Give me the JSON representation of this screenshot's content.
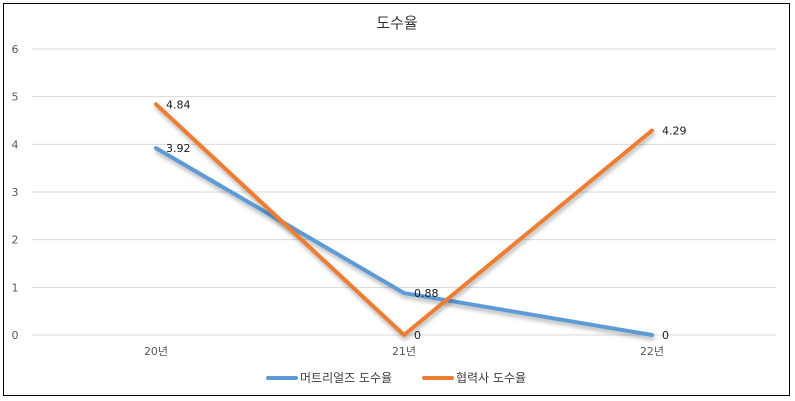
{
  "chart_data": {
    "type": "line",
    "title": "도수율",
    "categories": [
      "20년",
      "21년",
      "22년"
    ],
    "ylim": [
      0,
      6
    ],
    "yticks": [
      0,
      1,
      2,
      3,
      4,
      5,
      6
    ],
    "grid": true,
    "legend_position": "bottom",
    "series": [
      {
        "name": "머트리얼즈 도수율",
        "values": [
          3.92,
          0.88,
          0
        ],
        "labels": [
          "3.92",
          "0.88",
          "0"
        ],
        "color": "#5b9bd5"
      },
      {
        "name": "협력사 도수율",
        "values": [
          4.84,
          0,
          4.29
        ],
        "labels": [
          "4.84",
          "0",
          "4.29"
        ],
        "color": "#ed7d31"
      }
    ]
  }
}
